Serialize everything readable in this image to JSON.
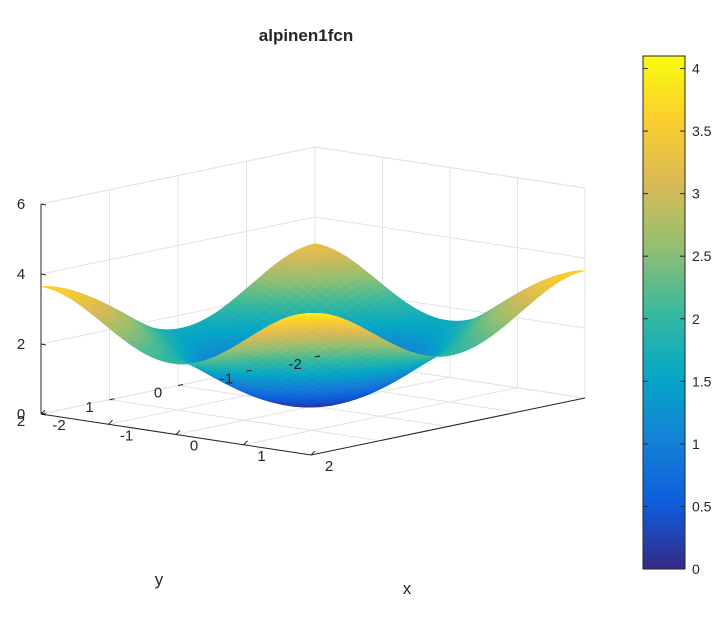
{
  "chart_data": {
    "type": "surface",
    "title": "alpinen1fcn",
    "xlabel": "x",
    "ylabel": "y",
    "zlabel": "",
    "function": "sum(|xi*sin(xi) + 0.1*xi|)",
    "xlim": [
      -2,
      2
    ],
    "ylim": [
      -2,
      2
    ],
    "zlim": [
      0,
      6
    ],
    "x_ticks": [
      "-2",
      "-1",
      "0",
      "1",
      "2"
    ],
    "y_ticks": [
      "-2",
      "-1",
      "0",
      "1",
      "2"
    ],
    "z_ticks": [
      "0",
      "2",
      "4",
      "6"
    ],
    "colorbar": {
      "range": [
        0,
        4.1
      ],
      "ticks": [
        "0",
        "0.5",
        "1",
        "1.5",
        "2",
        "2.5",
        "3",
        "3.5",
        "4"
      ],
      "colormap": "parula"
    },
    "grid": true
  }
}
